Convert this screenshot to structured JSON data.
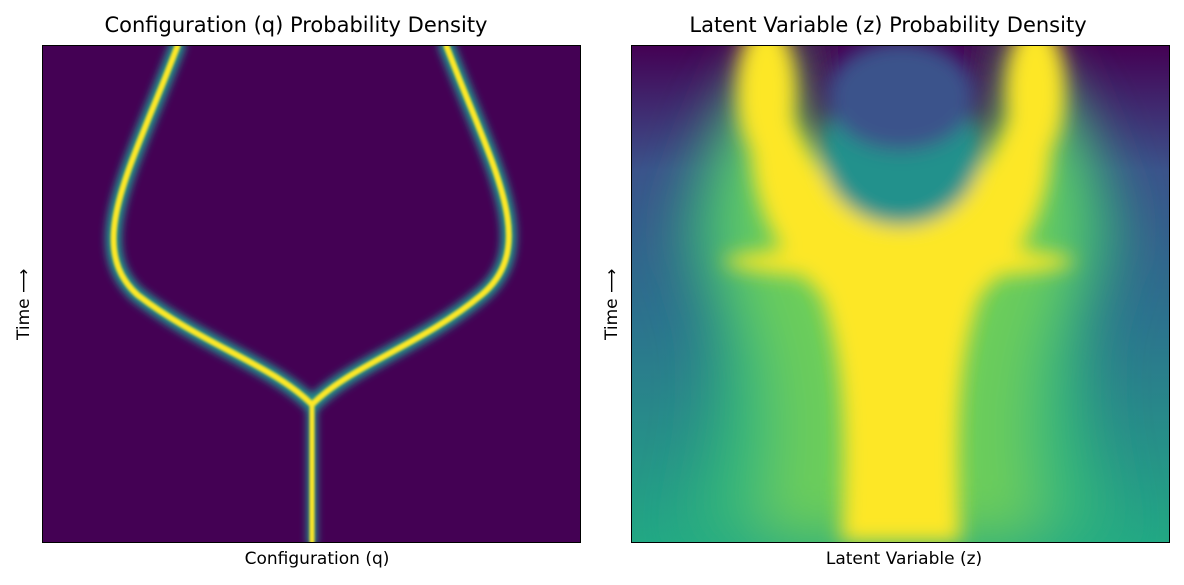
{
  "chart_data": [
    {
      "type": "heatmap",
      "title": "Configuration (q) Probability Density",
      "xlabel": "Configuration (q)",
      "ylabel": "Time ⟶",
      "colormap": "viridis",
      "xticks": [],
      "yticks": [],
      "description_values": {
        "branch_point_time_fraction": 0.28,
        "branch_point_q_fraction": 0.5,
        "max_branch_offset_fraction": 0.38,
        "final_branch_offsets_fraction": [
          0.25,
          0.25
        ]
      }
    },
    {
      "type": "heatmap",
      "title": "Latent Variable (z) Probability Density",
      "xlabel": "Latent Variable (z)",
      "ylabel": "Time ⟶",
      "colormap": "viridis",
      "xticks": [],
      "yticks": [],
      "description_values": {
        "peak_z_fractions_at_top": [
          0.25,
          0.74
        ],
        "central_peak_z_fraction": 0.5
      }
    }
  ],
  "colors": {
    "viridis_low": "#440154",
    "viridis_mid": "#21918c",
    "viridis_high": "#fde725",
    "axis": "#000000"
  }
}
